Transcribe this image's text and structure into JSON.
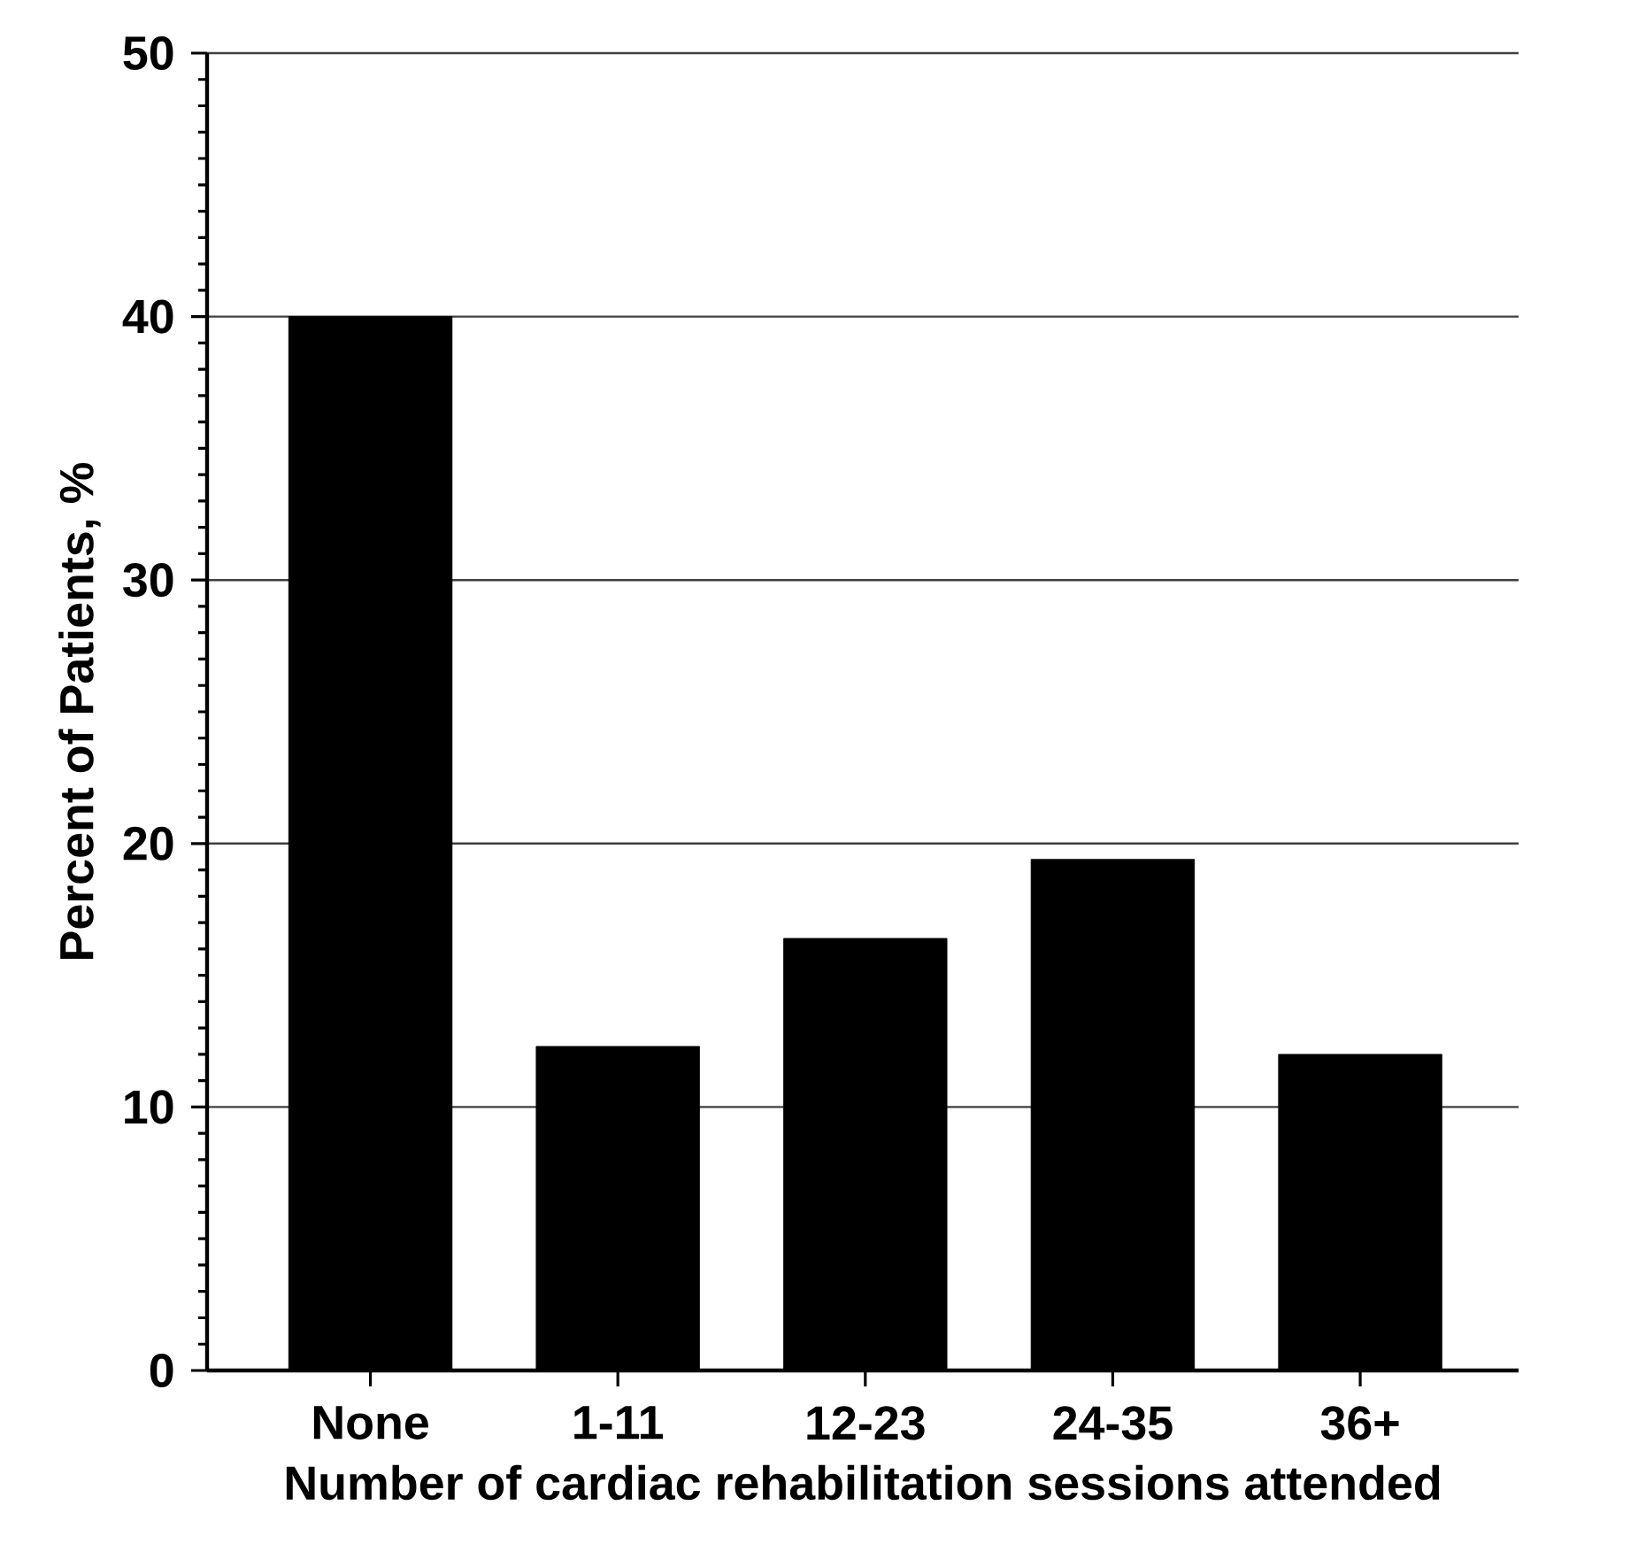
{
  "chart_data": {
    "type": "bar",
    "xlabel": "Number of cardiac rehabilitation sessions attended",
    "ylabel": "Percent of Patients, %",
    "categories": [
      "None",
      "1-11",
      "12-23",
      "24-35",
      "36+"
    ],
    "values": [
      40.0,
      12.3,
      16.4,
      19.4,
      12.0
    ],
    "color": "#000000",
    "ylim": [
      0,
      50
    ],
    "yticks": [
      0,
      10,
      20,
      30,
      40,
      50
    ],
    "grid": "y"
  }
}
